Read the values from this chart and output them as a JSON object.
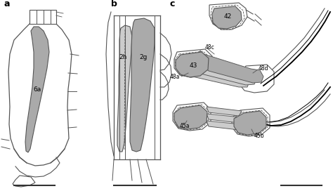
{
  "bg_color": "#ffffff",
  "line_color": "#555555",
  "gray_fill": "#aaaaaa",
  "light_gray": "#cccccc",
  "panel_labels": [
    "a",
    "b",
    "c"
  ],
  "muscle_labels_a": [
    "6a"
  ],
  "muscle_labels_b": [
    "2g",
    "2h"
  ],
  "muscle_labels_c": [
    "42",
    "48d",
    "48c",
    "48a",
    "43",
    "45b",
    "45a"
  ],
  "scale_bar_color": "#333333"
}
